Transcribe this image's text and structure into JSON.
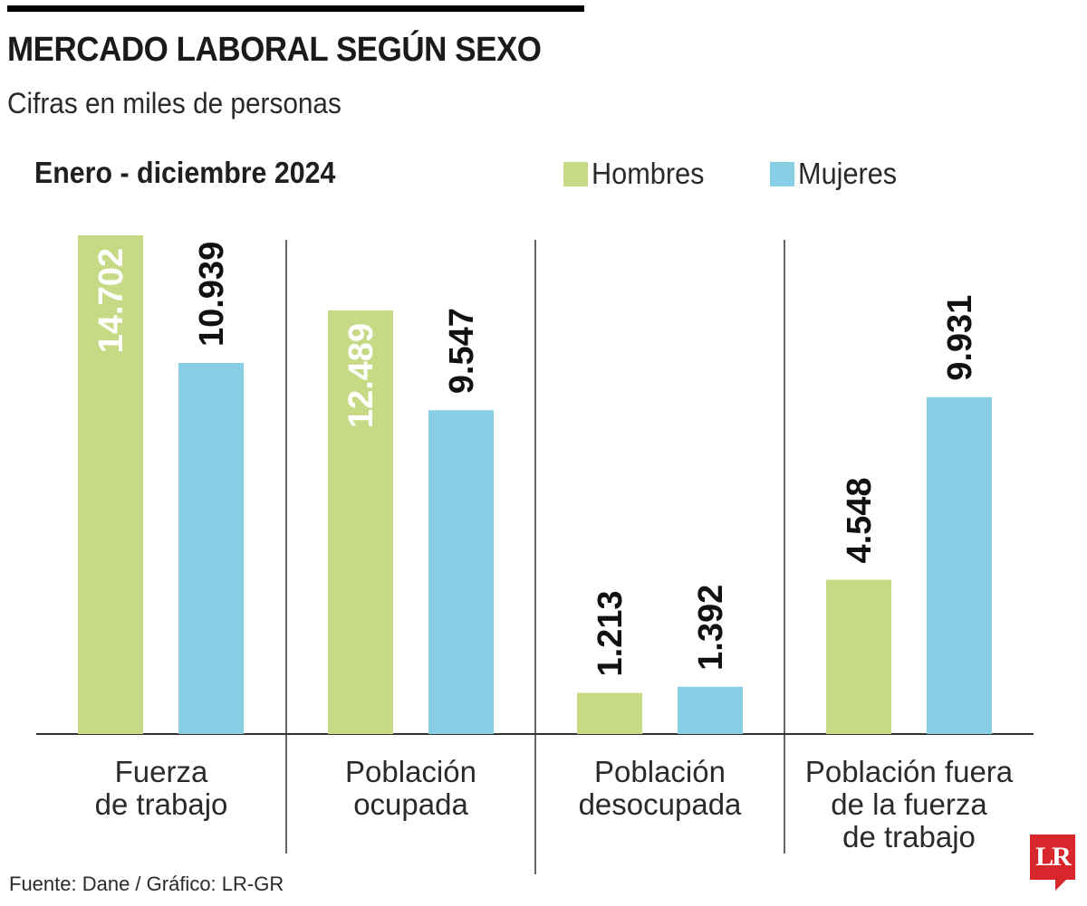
{
  "title": "MERCADO LABORAL SEGÚN SEXO",
  "subtitle": "Cifras en miles de personas",
  "period": "Enero - diciembre 2024",
  "source": "Fuente: Dane / Gráfico: LR-GR",
  "logo": "LR",
  "colors": {
    "hombres": "#c6da86",
    "mujeres": "#88cfe6",
    "axis": "#333333",
    "label_dark": "#111111",
    "label_light": "#ffffff"
  },
  "chart_data": {
    "type": "bar",
    "categories": [
      "Fuerza de trabajo",
      "Población ocupada",
      "Población desocupada",
      "Población fuera de la fuerza de trabajo"
    ],
    "category_lines": [
      [
        "Fuerza",
        "de trabajo"
      ],
      [
        "Población",
        "ocupada"
      ],
      [
        "Población",
        "desocupada"
      ],
      [
        "Población fuera",
        "de la fuerza",
        "de trabajo"
      ]
    ],
    "series": [
      {
        "name": "Hombres",
        "values": [
          14702,
          12489,
          1213,
          4548
        ],
        "labels": [
          "14.702",
          "12.489",
          "1.213",
          "4.548"
        ]
      },
      {
        "name": "Mujeres",
        "values": [
          10939,
          9547,
          1392,
          9931
        ],
        "labels": [
          "10.939",
          "9.547",
          "1.392",
          "9.931"
        ]
      }
    ],
    "ylim": [
      0,
      14702
    ],
    "grid": false,
    "legend": "top-right"
  }
}
